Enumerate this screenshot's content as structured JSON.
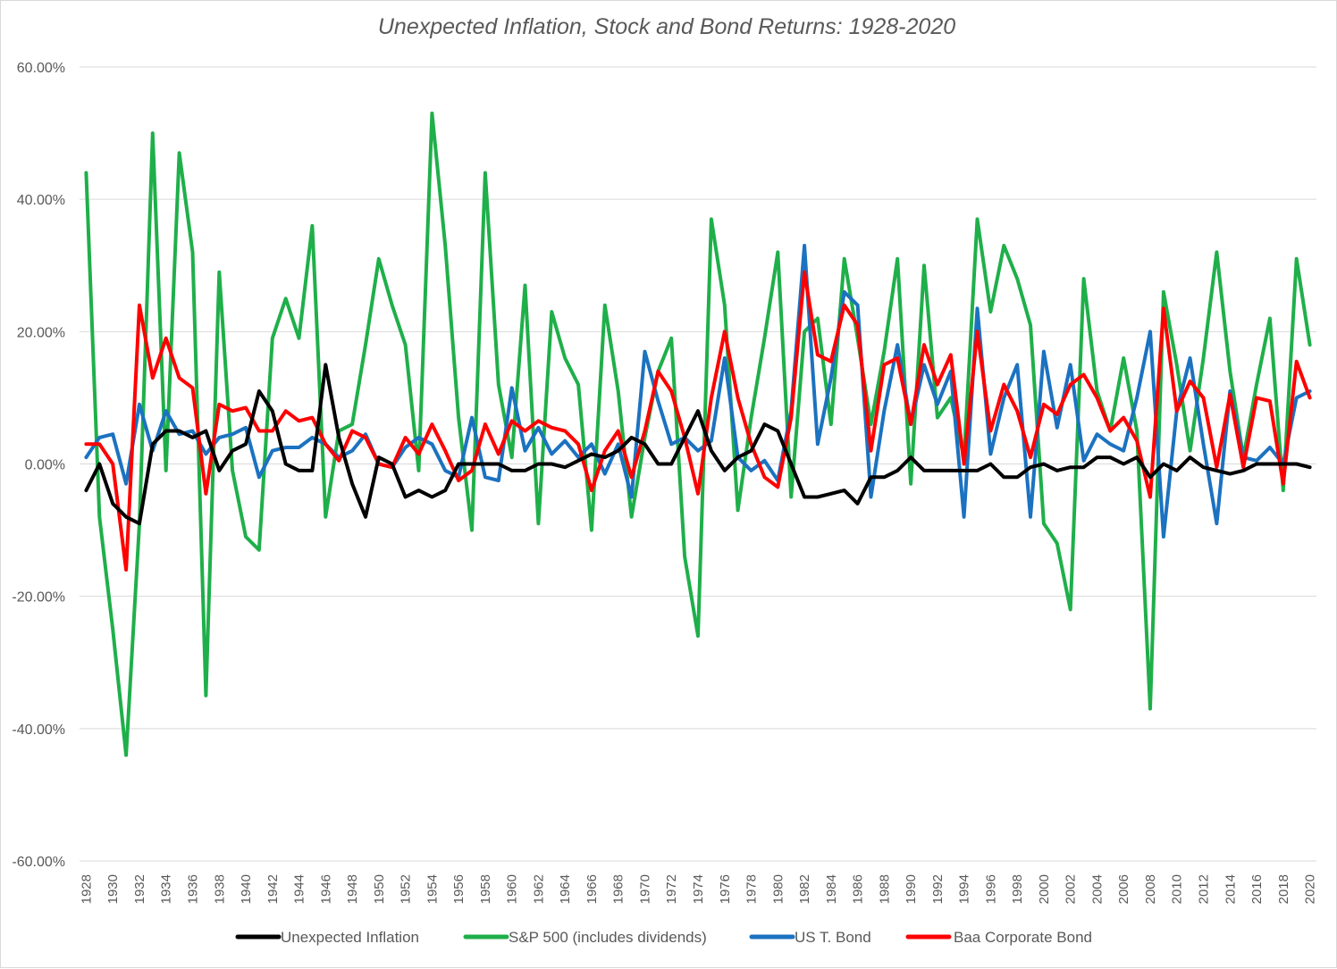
{
  "chart_data": {
    "type": "line",
    "title": "Unexpected Inflation, Stock and Bond Returns: 1928-2020",
    "xlabel": "",
    "ylabel": "",
    "ylim": [
      -0.6,
      0.6
    ],
    "y_ticks": [
      0.6,
      0.4,
      0.2,
      0.0,
      -0.2,
      -0.4,
      -0.6
    ],
    "y_tick_labels": [
      "60.00%",
      "40.00%",
      "20.00%",
      "0.00%",
      "-20.00%",
      "-40.00%",
      "-60.00%"
    ],
    "x_start": 1928,
    "x_end": 2020,
    "x_tick_labels": [
      "1928",
      "1930",
      "1932",
      "1934",
      "1936",
      "1938",
      "1940",
      "1942",
      "1944",
      "1946",
      "1948",
      "1950",
      "1952",
      "1954",
      "1956",
      "1958",
      "1960",
      "1962",
      "1964",
      "1966",
      "1968",
      "1970",
      "1972",
      "1974",
      "1976",
      "1978",
      "1980",
      "1982",
      "1984",
      "1986",
      "1988",
      "1990",
      "1992",
      "1994",
      "1996",
      "1998",
      "2000",
      "2002",
      "2004",
      "2006",
      "2008",
      "2010",
      "2012",
      "2014",
      "2016",
      "2018",
      "2020"
    ],
    "grid": true,
    "legend_position": "bottom",
    "series": [
      {
        "name": "Unexpected Inflation",
        "color": "#000000",
        "values": [
          -0.04,
          0.0,
          -0.06,
          -0.08,
          -0.09,
          0.03,
          0.05,
          0.05,
          0.04,
          0.05,
          -0.01,
          0.02,
          0.03,
          0.11,
          0.08,
          0.0,
          -0.01,
          -0.01,
          0.15,
          0.04,
          -0.03,
          -0.08,
          0.01,
          0.0,
          -0.05,
          -0.04,
          -0.05,
          -0.04,
          0.0,
          0.0,
          0.0,
          0.0,
          -0.01,
          -0.01,
          0.0,
          0.0,
          -0.005,
          0.005,
          0.015,
          0.01,
          0.02,
          0.04,
          0.03,
          0.0,
          0.0,
          0.04,
          0.08,
          0.02,
          -0.01,
          0.01,
          0.02,
          0.06,
          0.05,
          0.0,
          -0.05,
          -0.05,
          -0.045,
          -0.04,
          -0.06,
          -0.02,
          -0.02,
          -0.01,
          0.01,
          -0.01,
          -0.01,
          -0.01,
          -0.01,
          -0.01,
          0.0,
          -0.02,
          -0.02,
          -0.005,
          0.0,
          -0.01,
          -0.005,
          -0.005,
          0.01,
          0.01,
          0.0,
          0.01,
          -0.02,
          0.0,
          -0.01,
          0.01,
          -0.005,
          -0.01,
          -0.015,
          -0.01,
          0.0,
          0.0,
          0.0,
          0.0,
          -0.005
        ]
      },
      {
        "name": "S&P 500 (includes dividends)",
        "color": "#1faf4a",
        "values": [
          0.44,
          -0.08,
          -0.25,
          -0.44,
          -0.09,
          0.5,
          -0.01,
          0.47,
          0.32,
          -0.35,
          0.29,
          -0.01,
          -0.11,
          -0.13,
          0.19,
          0.25,
          0.19,
          0.36,
          -0.08,
          0.05,
          0.06,
          0.18,
          0.31,
          0.24,
          0.18,
          -0.01,
          0.53,
          0.33,
          0.07,
          -0.1,
          0.44,
          0.12,
          0.01,
          0.27,
          -0.09,
          0.23,
          0.16,
          0.12,
          -0.1,
          0.24,
          0.11,
          -0.08,
          0.04,
          0.14,
          0.19,
          -0.14,
          -0.26,
          0.37,
          0.24,
          -0.07,
          0.07,
          0.19,
          0.32,
          -0.05,
          0.2,
          0.22,
          0.06,
          0.31,
          0.19,
          0.06,
          0.17,
          0.31,
          -0.03,
          0.3,
          0.07,
          0.1,
          0.01,
          0.37,
          0.23,
          0.33,
          0.28,
          0.21,
          -0.09,
          -0.12,
          -0.22,
          0.28,
          0.11,
          0.05,
          0.16,
          0.05,
          -0.37,
          0.26,
          0.15,
          0.02,
          0.16,
          0.32,
          0.14,
          0.01,
          0.12,
          0.22,
          -0.04,
          0.31,
          0.18
        ]
      },
      {
        "name": "US T. Bond",
        "color": "#1b72c0",
        "values": [
          0.01,
          0.04,
          0.045,
          -0.03,
          0.09,
          0.02,
          0.08,
          0.045,
          0.05,
          0.015,
          0.04,
          0.045,
          0.055,
          -0.02,
          0.02,
          0.025,
          0.025,
          0.04,
          0.03,
          0.01,
          0.02,
          0.045,
          0.0,
          -0.005,
          0.025,
          0.04,
          0.03,
          -0.01,
          -0.02,
          0.07,
          -0.02,
          -0.025,
          0.115,
          0.02,
          0.055,
          0.015,
          0.035,
          0.01,
          0.03,
          -0.015,
          0.03,
          -0.05,
          0.17,
          0.095,
          0.03,
          0.04,
          0.02,
          0.035,
          0.16,
          0.01,
          -0.01,
          0.005,
          -0.025,
          0.08,
          0.33,
          0.03,
          0.13,
          0.26,
          0.24,
          -0.05,
          0.08,
          0.18,
          0.06,
          0.15,
          0.09,
          0.14,
          -0.08,
          0.235,
          0.015,
          0.1,
          0.15,
          -0.08,
          0.17,
          0.055,
          0.15,
          0.005,
          0.045,
          0.03,
          0.02,
          0.1,
          0.2,
          -0.11,
          0.08,
          0.16,
          0.03,
          -0.09,
          0.11,
          0.01,
          0.005,
          0.025,
          0.0,
          0.1,
          0.11
        ]
      },
      {
        "name": "Baa Corporate Bond",
        "color": "#ff0000",
        "values": [
          0.03,
          0.03,
          0.0,
          -0.16,
          0.24,
          0.13,
          0.19,
          0.13,
          0.115,
          -0.045,
          0.09,
          0.08,
          0.085,
          0.05,
          0.05,
          0.08,
          0.065,
          0.07,
          0.03,
          0.005,
          0.05,
          0.04,
          0.0,
          -0.005,
          0.04,
          0.015,
          0.06,
          0.02,
          -0.025,
          -0.01,
          0.06,
          0.015,
          0.065,
          0.05,
          0.065,
          0.055,
          0.05,
          0.03,
          -0.04,
          0.02,
          0.05,
          -0.02,
          0.05,
          0.14,
          0.11,
          0.04,
          -0.045,
          0.1,
          0.2,
          0.1,
          0.03,
          -0.02,
          -0.035,
          0.07,
          0.29,
          0.165,
          0.155,
          0.24,
          0.21,
          0.02,
          0.15,
          0.16,
          0.06,
          0.18,
          0.12,
          0.165,
          0.0,
          0.2,
          0.05,
          0.12,
          0.08,
          0.01,
          0.09,
          0.075,
          0.12,
          0.135,
          0.1,
          0.05,
          0.07,
          0.035,
          -0.05,
          0.235,
          0.08,
          0.125,
          0.1,
          -0.005,
          0.105,
          -0.005,
          0.1,
          0.095,
          -0.03,
          0.155,
          0.1
        ]
      }
    ]
  }
}
